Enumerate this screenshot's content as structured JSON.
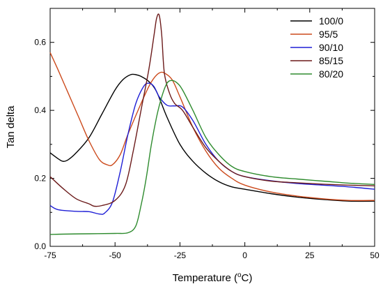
{
  "chart_data": {
    "type": "line",
    "xlabel": "Temperature (",
    "xlabel_unit": "C)",
    "xlabel_degree": "o",
    "ylabel": "Tan delta",
    "xlim": [
      -75,
      50
    ],
    "ylim": [
      0.0,
      0.7
    ],
    "xticks": [
      "-75",
      "-50",
      "-25",
      "0",
      "25",
      "50"
    ],
    "yticks": [
      "0.0",
      "0.2",
      "0.4",
      "0.6"
    ],
    "legend_position": "top-right",
    "grid": false,
    "series": [
      {
        "name": "100/0",
        "color": "#000000",
        "points": [
          [
            -75,
            0.275
          ],
          [
            -72,
            0.258
          ],
          [
            -70,
            0.25
          ],
          [
            -68,
            0.255
          ],
          [
            -65,
            0.275
          ],
          [
            -60,
            0.32
          ],
          [
            -55,
            0.39
          ],
          [
            -50,
            0.46
          ],
          [
            -47,
            0.49
          ],
          [
            -44,
            0.505
          ],
          [
            -42,
            0.505
          ],
          [
            -40,
            0.5
          ],
          [
            -37,
            0.485
          ],
          [
            -34,
            0.455
          ],
          [
            -30,
            0.38
          ],
          [
            -25,
            0.3
          ],
          [
            -20,
            0.25
          ],
          [
            -15,
            0.215
          ],
          [
            -10,
            0.19
          ],
          [
            -5,
            0.175
          ],
          [
            0,
            0.168
          ],
          [
            10,
            0.155
          ],
          [
            20,
            0.145
          ],
          [
            30,
            0.138
          ],
          [
            40,
            0.133
          ],
          [
            50,
            0.133
          ]
        ]
      },
      {
        "name": "95/5",
        "color": "#cc4a1c",
        "points": [
          [
            -75,
            0.57
          ],
          [
            -72,
            0.52
          ],
          [
            -68,
            0.45
          ],
          [
            -64,
            0.38
          ],
          [
            -60,
            0.31
          ],
          [
            -56,
            0.255
          ],
          [
            -53,
            0.24
          ],
          [
            -51,
            0.24
          ],
          [
            -48,
            0.27
          ],
          [
            -45,
            0.33
          ],
          [
            -40,
            0.42
          ],
          [
            -37,
            0.47
          ],
          [
            -35,
            0.495
          ],
          [
            -33,
            0.51
          ],
          [
            -31,
            0.51
          ],
          [
            -28,
            0.49
          ],
          [
            -25,
            0.44
          ],
          [
            -20,
            0.35
          ],
          [
            -15,
            0.28
          ],
          [
            -10,
            0.23
          ],
          [
            -5,
            0.2
          ],
          [
            0,
            0.18
          ],
          [
            10,
            0.16
          ],
          [
            20,
            0.148
          ],
          [
            30,
            0.14
          ],
          [
            40,
            0.135
          ],
          [
            50,
            0.135
          ]
        ]
      },
      {
        "name": "90/10",
        "color": "#1f1fd6",
        "points": [
          [
            -75,
            0.12
          ],
          [
            -72,
            0.108
          ],
          [
            -65,
            0.103
          ],
          [
            -60,
            0.102
          ],
          [
            -56,
            0.095
          ],
          [
            -54,
            0.098
          ],
          [
            -51,
            0.13
          ],
          [
            -48,
            0.22
          ],
          [
            -45,
            0.33
          ],
          [
            -42,
            0.42
          ],
          [
            -39,
            0.47
          ],
          [
            -37,
            0.48
          ],
          [
            -35,
            0.47
          ],
          [
            -33,
            0.44
          ],
          [
            -30,
            0.415
          ],
          [
            -27,
            0.413
          ],
          [
            -24,
            0.41
          ],
          [
            -20,
            0.37
          ],
          [
            -15,
            0.3
          ],
          [
            -10,
            0.25
          ],
          [
            -5,
            0.22
          ],
          [
            0,
            0.205
          ],
          [
            10,
            0.193
          ],
          [
            20,
            0.185
          ],
          [
            30,
            0.18
          ],
          [
            40,
            0.175
          ],
          [
            50,
            0.168
          ]
        ]
      },
      {
        "name": "85/15",
        "color": "#6b1a1a",
        "points": [
          [
            -75,
            0.205
          ],
          [
            -70,
            0.17
          ],
          [
            -65,
            0.14
          ],
          [
            -60,
            0.125
          ],
          [
            -58,
            0.118
          ],
          [
            -55,
            0.12
          ],
          [
            -50,
            0.135
          ],
          [
            -46,
            0.18
          ],
          [
            -43,
            0.28
          ],
          [
            -40,
            0.4
          ],
          [
            -37,
            0.52
          ],
          [
            -35,
            0.62
          ],
          [
            -34,
            0.67
          ],
          [
            -33,
            0.68
          ],
          [
            -32,
            0.62
          ],
          [
            -31,
            0.51
          ],
          [
            -29,
            0.45
          ],
          [
            -27,
            0.42
          ],
          [
            -24,
            0.4
          ],
          [
            -20,
            0.35
          ],
          [
            -15,
            0.29
          ],
          [
            -10,
            0.25
          ],
          [
            -5,
            0.22
          ],
          [
            0,
            0.205
          ],
          [
            10,
            0.192
          ],
          [
            20,
            0.187
          ],
          [
            30,
            0.183
          ],
          [
            40,
            0.18
          ],
          [
            50,
            0.178
          ]
        ]
      },
      {
        "name": "80/20",
        "color": "#2e8b2e",
        "points": [
          [
            -75,
            0.035
          ],
          [
            -70,
            0.036
          ],
          [
            -60,
            0.037
          ],
          [
            -50,
            0.038
          ],
          [
            -45,
            0.04
          ],
          [
            -42,
            0.06
          ],
          [
            -40,
            0.12
          ],
          [
            -38,
            0.2
          ],
          [
            -36,
            0.3
          ],
          [
            -34,
            0.38
          ],
          [
            -32,
            0.44
          ],
          [
            -30,
            0.48
          ],
          [
            -28,
            0.488
          ],
          [
            -26,
            0.48
          ],
          [
            -24,
            0.46
          ],
          [
            -20,
            0.4
          ],
          [
            -15,
            0.32
          ],
          [
            -10,
            0.27
          ],
          [
            -5,
            0.235
          ],
          [
            0,
            0.22
          ],
          [
            10,
            0.205
          ],
          [
            20,
            0.198
          ],
          [
            30,
            0.192
          ],
          [
            40,
            0.186
          ],
          [
            50,
            0.182
          ]
        ]
      }
    ]
  }
}
